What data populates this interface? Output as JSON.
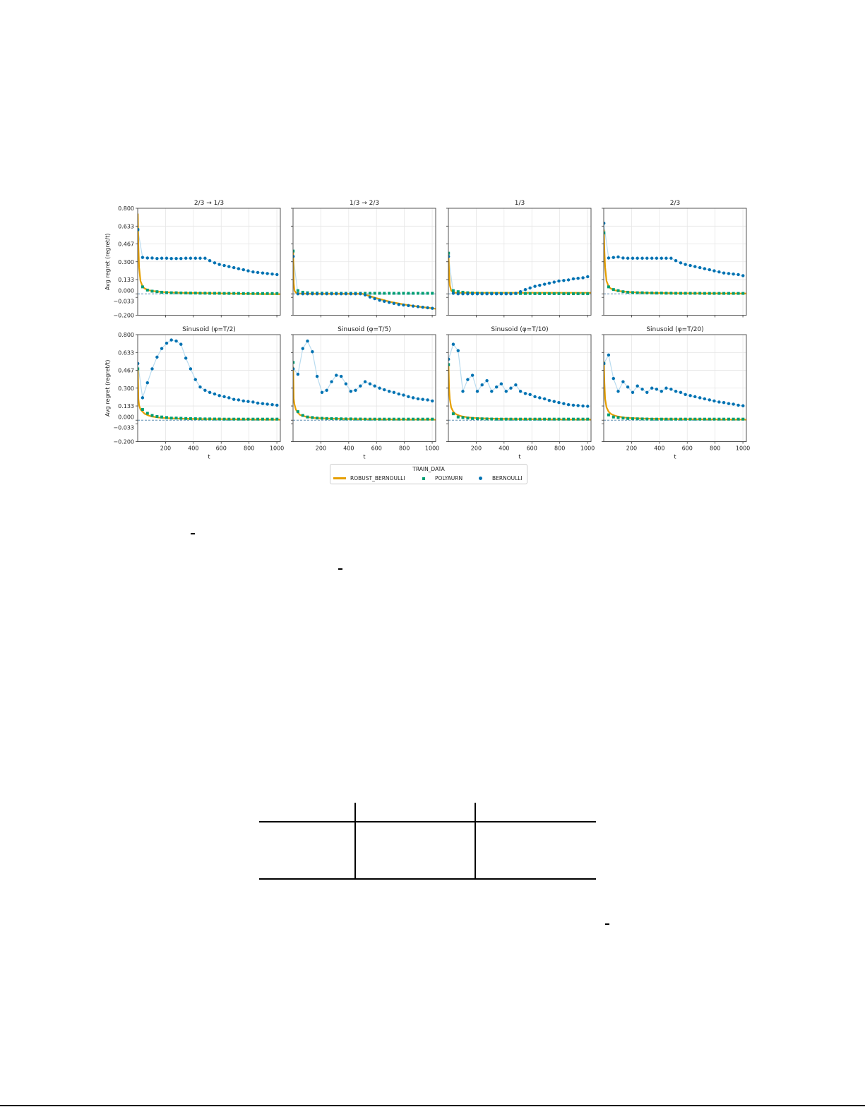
{
  "chart_data": {
    "type": "scatter",
    "layout": "2x4 grid of subplots",
    "ylabel": "Avg regret (regret/t)",
    "xlabel": "t",
    "ylim": [
      -0.2,
      0.8
    ],
    "xlim": [
      0,
      1025
    ],
    "yticks": [
      "0.800",
      "0.633",
      "0.467",
      "0.300",
      "0.133",
      "0.000",
      "−0.033",
      "−0.200"
    ],
    "ytick_values": [
      0.8,
      0.633,
      0.467,
      0.3,
      0.133,
      0.0,
      -0.033,
      -0.2
    ],
    "xticks": [
      "200",
      "400",
      "600",
      "800",
      "1000"
    ],
    "xtick_values": [
      200,
      400,
      600,
      800,
      1000
    ],
    "grid": true,
    "reference_line": {
      "y": 0,
      "style": "dashed"
    },
    "legend": {
      "title": "TRAIN_DATA",
      "placement": "bottom-center",
      "entries": [
        {
          "name": "ROBUST_BERNOULLI",
          "marker": "line",
          "color": "#E69F00"
        },
        {
          "name": "POLYAURN",
          "marker": "square",
          "color": "#009E73"
        },
        {
          "name": "BERNOULLI",
          "marker": "circle",
          "color": "#0072B2"
        }
      ]
    },
    "x": [
      1,
      35,
      70,
      104,
      139,
      173,
      208,
      242,
      277,
      311,
      346,
      380,
      415,
      449,
      484,
      518,
      553,
      587,
      622,
      656,
      691,
      725,
      760,
      794,
      829,
      863,
      898,
      932,
      967,
      1001
    ],
    "robust_x": [
      1,
      5,
      10,
      20,
      35,
      50,
      75,
      100,
      150,
      200,
      300,
      400,
      500,
      600,
      700,
      800,
      900,
      1000,
      1025
    ],
    "panels": [
      {
        "title": "2/3 → 1/3",
        "ROBUST_BERNOULLI": [
          0.75,
          0.45,
          0.25,
          0.12,
          0.07,
          0.05,
          0.035,
          0.028,
          0.02,
          0.015,
          0.01,
          0.008,
          0.006,
          0.004,
          0.002,
          0.0,
          -0.002,
          -0.003,
          -0.003
        ],
        "POLYAURN": [
          0.6,
          0.065,
          0.035,
          0.025,
          0.02,
          0.015,
          0.012,
          0.01,
          0.01,
          0.008,
          0.008,
          0.007,
          0.007,
          0.006,
          0.006,
          0.005,
          0.005,
          0.005,
          0.004,
          0.004,
          0.004,
          0.004,
          0.003,
          0.003,
          0.003,
          0.003,
          0.003,
          0.003,
          0.003,
          0.003
        ],
        "BERNOULLI": [
          0.6,
          0.34,
          0.335,
          0.335,
          0.33,
          0.333,
          0.333,
          0.33,
          0.33,
          0.33,
          0.333,
          0.333,
          0.333,
          0.333,
          0.333,
          0.31,
          0.29,
          0.275,
          0.265,
          0.255,
          0.245,
          0.235,
          0.225,
          0.215,
          0.205,
          0.2,
          0.195,
          0.19,
          0.185,
          0.18
        ]
      },
      {
        "title": "1/3 → 2/3",
        "ROBUST_BERNOULLI": [
          0.4,
          0.1,
          0.03,
          0.01,
          0.005,
          0.003,
          0.002,
          0.001,
          0,
          0,
          0,
          0,
          0,
          -0.04,
          -0.075,
          -0.1,
          -0.12,
          -0.135,
          -0.14
        ],
        "POLYAURN": [
          0.4,
          0.03,
          0.015,
          0.01,
          0.008,
          0.007,
          0.006,
          0.006,
          0.005,
          0.005,
          0.005,
          0.005,
          0.005,
          0.005,
          0.005,
          0.005,
          0.005,
          0.005,
          0.005,
          0.005,
          0.005,
          0.005,
          0.005,
          0.005,
          0.005,
          0.005,
          0.005,
          0.005,
          0.005,
          0.005
        ],
        "BERNOULLI": [
          0.35,
          0.0,
          0.0,
          0.0,
          0.0,
          0.0,
          0.0,
          0.0,
          0.0,
          0.0,
          0.0,
          0.0,
          0.0,
          0.0,
          0.0,
          -0.01,
          -0.03,
          -0.045,
          -0.06,
          -0.07,
          -0.08,
          -0.09,
          -0.1,
          -0.105,
          -0.11,
          -0.115,
          -0.12,
          -0.125,
          -0.13,
          -0.135
        ]
      },
      {
        "title": "1/3",
        "ROBUST_BERNOULLI": [
          0.38,
          0.2,
          0.08,
          0.03,
          0.015,
          0.01,
          0.01,
          0.01,
          0.01,
          0.01,
          0.01,
          0.01,
          0.01,
          0.01,
          0.01,
          0.01,
          0.01,
          0.01,
          0.01
        ],
        "POLYAURN": [
          0.38,
          0.03,
          0.02,
          0.015,
          0.01,
          0.008,
          0.006,
          0.005,
          0.005,
          0.005,
          0.004,
          0.004,
          0.004,
          0.003,
          0.003,
          0.003,
          0.003,
          0.003,
          0.002,
          0.002,
          0.002,
          0.002,
          0.002,
          0.002,
          0.001,
          0.001,
          0.001,
          0.001,
          0.001,
          0.001
        ],
        "BERNOULLI": [
          0.35,
          0.005,
          0.0,
          0.0,
          0.0,
          0.0,
          0.0,
          0.0,
          0.0,
          0.0,
          0.0,
          0.0,
          0.0,
          0.0,
          0.005,
          0.02,
          0.04,
          0.055,
          0.07,
          0.08,
          0.09,
          0.1,
          0.11,
          0.12,
          0.125,
          0.13,
          0.14,
          0.145,
          0.15,
          0.16
        ]
      },
      {
        "title": "2/3",
        "ROBUST_BERNOULLI": [
          0.6,
          0.4,
          0.25,
          0.12,
          0.07,
          0.05,
          0.035,
          0.028,
          0.02,
          0.015,
          0.01,
          0.008,
          0.006,
          0.005,
          0.004,
          0.004,
          0.003,
          0.003,
          0.003
        ],
        "POLYAURN": [
          0.57,
          0.065,
          0.04,
          0.03,
          0.02,
          0.015,
          0.012,
          0.01,
          0.01,
          0.008,
          0.008,
          0.007,
          0.007,
          0.006,
          0.006,
          0.005,
          0.005,
          0.005,
          0.005,
          0.005,
          0.005,
          0.004,
          0.004,
          0.004,
          0.004,
          0.004,
          0.004,
          0.004,
          0.004,
          0.004
        ],
        "BERNOULLI": [
          0.66,
          0.335,
          0.34,
          0.345,
          0.335,
          0.333,
          0.333,
          0.333,
          0.333,
          0.333,
          0.333,
          0.333,
          0.333,
          0.333,
          0.333,
          0.31,
          0.29,
          0.275,
          0.265,
          0.255,
          0.245,
          0.235,
          0.225,
          0.215,
          0.205,
          0.195,
          0.19,
          0.185,
          0.18,
          0.17
        ]
      },
      {
        "title": "Sinusoid (φ=T/2)",
        "ROBUST_BERNOULLI": [
          0.48,
          0.2,
          0.14,
          0.1,
          0.08,
          0.06,
          0.045,
          0.035,
          0.025,
          0.02,
          0.015,
          0.012,
          0.01,
          0.01,
          0.008,
          0.007,
          0.006,
          0.005,
          0.005
        ],
        "POLYAURN": [
          0.48,
          0.1,
          0.065,
          0.045,
          0.035,
          0.03,
          0.025,
          0.02,
          0.02,
          0.018,
          0.016,
          0.015,
          0.014,
          0.013,
          0.012,
          0.012,
          0.011,
          0.011,
          0.01,
          0.01,
          0.01,
          0.01,
          0.01,
          0.01,
          0.01,
          0.01,
          0.01,
          0.01,
          0.01,
          0.01
        ],
        "BERNOULLI": [
          0.53,
          0.21,
          0.35,
          0.48,
          0.59,
          0.67,
          0.72,
          0.75,
          0.74,
          0.71,
          0.58,
          0.48,
          0.38,
          0.31,
          0.28,
          0.26,
          0.245,
          0.23,
          0.22,
          0.21,
          0.195,
          0.19,
          0.18,
          0.175,
          0.17,
          0.16,
          0.155,
          0.15,
          0.145,
          0.14
        ]
      },
      {
        "title": "Sinusoid (φ=T/5)",
        "ROBUST_BERNOULLI": [
          0.5,
          0.2,
          0.15,
          0.1,
          0.07,
          0.05,
          0.04,
          0.03,
          0.022,
          0.018,
          0.014,
          0.011,
          0.009,
          0.008,
          0.007,
          0.006,
          0.006,
          0.005,
          0.005
        ],
        "POLYAURN": [
          0.54,
          0.08,
          0.045,
          0.03,
          0.025,
          0.02,
          0.018,
          0.016,
          0.015,
          0.014,
          0.013,
          0.012,
          0.012,
          0.011,
          0.011,
          0.01,
          0.01,
          0.01,
          0.01,
          0.01,
          0.01,
          0.01,
          0.01,
          0.01,
          0.01,
          0.01,
          0.01,
          0.01,
          0.01,
          0.01
        ],
        "BERNOULLI": [
          0.48,
          0.43,
          0.67,
          0.74,
          0.64,
          0.41,
          0.26,
          0.28,
          0.36,
          0.42,
          0.41,
          0.34,
          0.27,
          0.28,
          0.32,
          0.36,
          0.34,
          0.32,
          0.3,
          0.285,
          0.27,
          0.26,
          0.245,
          0.235,
          0.22,
          0.21,
          0.2,
          0.195,
          0.19,
          0.18
        ]
      },
      {
        "title": "Sinusoid (φ=T/10)",
        "ROBUST_BERNOULLI": [
          0.52,
          0.3,
          0.2,
          0.12,
          0.08,
          0.06,
          0.045,
          0.035,
          0.025,
          0.02,
          0.015,
          0.012,
          0.01,
          0.009,
          0.008,
          0.007,
          0.006,
          0.006,
          0.005
        ],
        "POLYAURN": [
          0.52,
          0.06,
          0.03,
          0.025,
          0.02,
          0.016,
          0.014,
          0.013,
          0.012,
          0.011,
          0.01,
          0.01,
          0.01,
          0.01,
          0.01,
          0.01,
          0.01,
          0.01,
          0.01,
          0.01,
          0.01,
          0.01,
          0.01,
          0.01,
          0.01,
          0.01,
          0.01,
          0.01,
          0.01,
          0.01
        ],
        "BERNOULLI": [
          0.57,
          0.71,
          0.65,
          0.27,
          0.38,
          0.42,
          0.27,
          0.33,
          0.37,
          0.27,
          0.31,
          0.34,
          0.27,
          0.3,
          0.33,
          0.27,
          0.25,
          0.24,
          0.22,
          0.21,
          0.2,
          0.185,
          0.175,
          0.165,
          0.155,
          0.145,
          0.14,
          0.137,
          0.133,
          0.13
        ]
      },
      {
        "title": "Sinusoid (φ=T/20)",
        "ROBUST_BERNOULLI": [
          0.55,
          0.35,
          0.2,
          0.12,
          0.08,
          0.06,
          0.045,
          0.035,
          0.025,
          0.02,
          0.015,
          0.012,
          0.01,
          0.009,
          0.008,
          0.007,
          0.006,
          0.006,
          0.005
        ],
        "POLYAURN": [
          0.53,
          0.05,
          0.03,
          0.025,
          0.02,
          0.016,
          0.014,
          0.013,
          0.012,
          0.011,
          0.01,
          0.01,
          0.01,
          0.01,
          0.01,
          0.01,
          0.01,
          0.01,
          0.01,
          0.01,
          0.01,
          0.01,
          0.01,
          0.01,
          0.01,
          0.01,
          0.01,
          0.01,
          0.01,
          0.01
        ],
        "BERNOULLI": [
          0.53,
          0.61,
          0.39,
          0.27,
          0.36,
          0.31,
          0.26,
          0.32,
          0.29,
          0.26,
          0.3,
          0.29,
          0.27,
          0.3,
          0.29,
          0.27,
          0.26,
          0.24,
          0.23,
          0.22,
          0.21,
          0.2,
          0.19,
          0.18,
          0.17,
          0.165,
          0.155,
          0.15,
          0.14,
          0.135
        ]
      }
    ]
  }
}
